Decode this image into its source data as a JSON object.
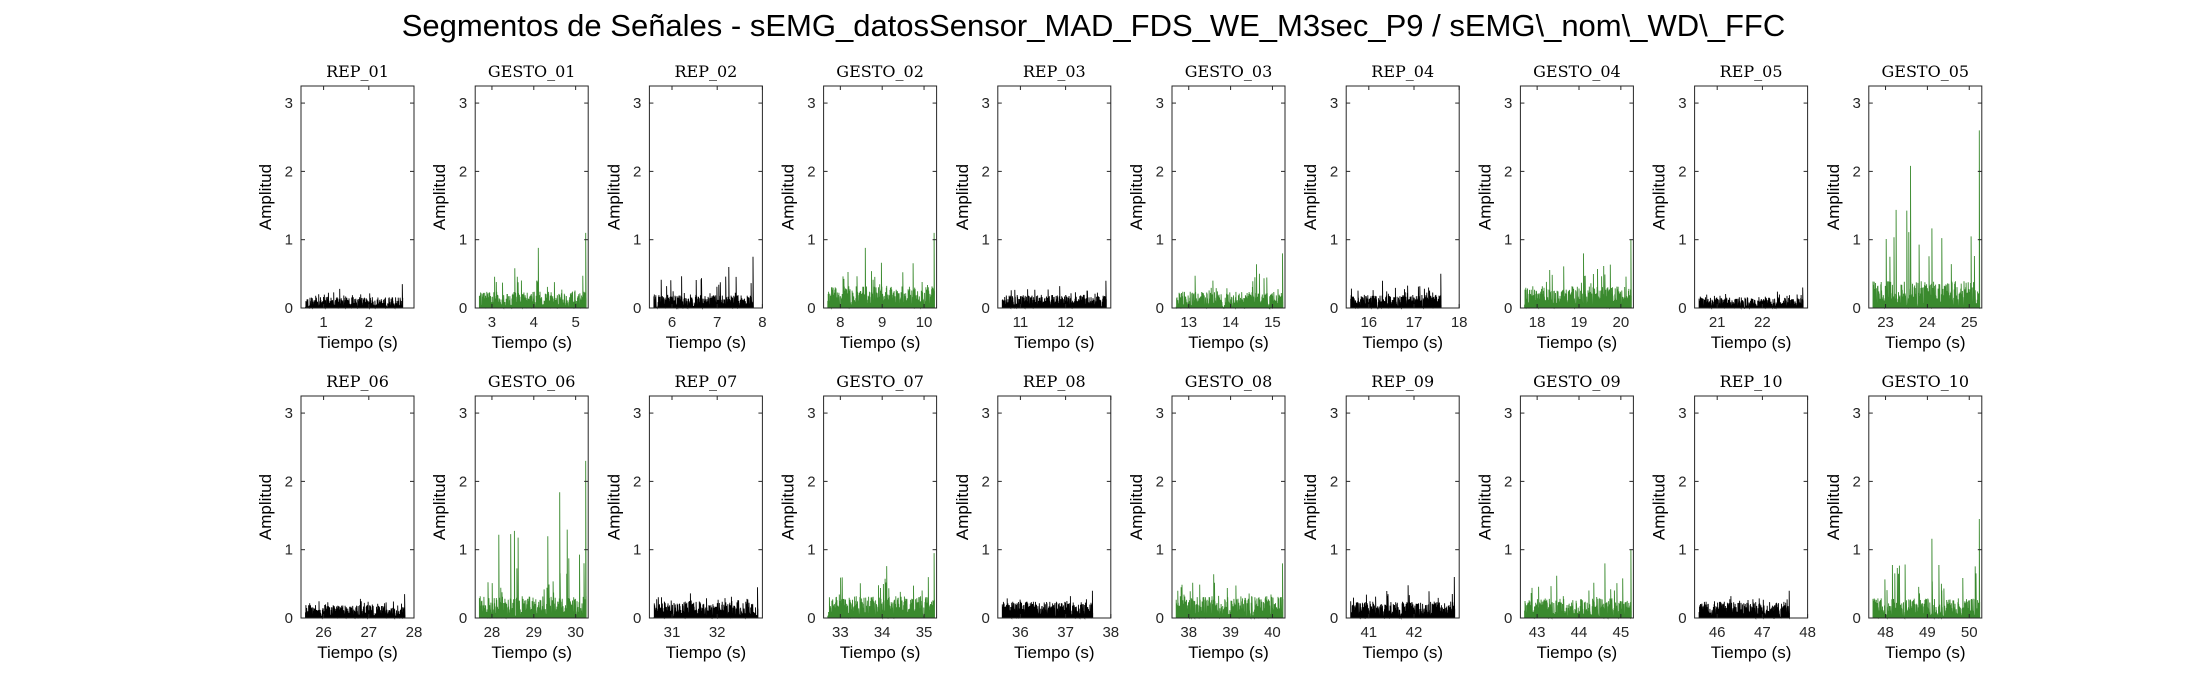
{
  "title": "Segmentos de Señales - sEMG_datosSensor_MAD_FDS_WE_M3sec_P9 / sEMG\\_nom\\_WD\\_FFC",
  "chart_data": {
    "type": "line",
    "xlabel": "Tiempo (s)",
    "ylabel": "Amplitud",
    "ylim": [
      0,
      3.25
    ],
    "yticks": [
      0,
      1,
      2,
      3
    ],
    "colors": {
      "rep": "#000000",
      "gesto": "#3a8a2e",
      "axes": "#262626"
    },
    "panels": [
      {
        "title": "REP_01",
        "kind": "rep",
        "xlim": [
          0.5,
          3.0
        ],
        "xticks": [
          1,
          2
        ],
        "sig": [
          0.6,
          2.75
        ],
        "base": 0.1,
        "peak": 0.35
      },
      {
        "title": "GESTO_01",
        "kind": "gesto",
        "xlim": [
          2.6,
          5.3
        ],
        "xticks": [
          3,
          4,
          5
        ],
        "sig": [
          2.7,
          5.25
        ],
        "base": 0.15,
        "peak": 1.1
      },
      {
        "title": "REP_02",
        "kind": "rep",
        "xlim": [
          5.5,
          8.0
        ],
        "xticks": [
          6,
          7,
          8
        ],
        "sig": [
          5.6,
          7.8
        ],
        "base": 0.12,
        "peak": 0.75
      },
      {
        "title": "GESTO_02",
        "kind": "gesto",
        "xlim": [
          7.6,
          10.3
        ],
        "xticks": [
          8,
          9,
          10
        ],
        "sig": [
          7.7,
          10.25
        ],
        "base": 0.2,
        "peak": 1.1
      },
      {
        "title": "REP_03",
        "kind": "rep",
        "xlim": [
          10.5,
          13.0
        ],
        "xticks": [
          11,
          12
        ],
        "sig": [
          10.6,
          12.9
        ],
        "base": 0.12,
        "peak": 0.4
      },
      {
        "title": "GESTO_03",
        "kind": "gesto",
        "xlim": [
          12.6,
          15.3
        ],
        "xticks": [
          13,
          14,
          15
        ],
        "sig": [
          12.7,
          15.25
        ],
        "base": 0.15,
        "peak": 0.8
      },
      {
        "title": "REP_04",
        "kind": "rep",
        "xlim": [
          15.5,
          18.0
        ],
        "xticks": [
          16,
          17,
          18
        ],
        "sig": [
          15.6,
          17.6
        ],
        "base": 0.12,
        "peak": 0.5
      },
      {
        "title": "GESTO_04",
        "kind": "gesto",
        "xlim": [
          17.6,
          20.3
        ],
        "xticks": [
          18,
          19,
          20
        ],
        "sig": [
          17.7,
          20.25
        ],
        "base": 0.2,
        "peak": 1.0
      },
      {
        "title": "REP_05",
        "kind": "rep",
        "xlim": [
          20.5,
          23.0
        ],
        "xticks": [
          21,
          22
        ],
        "sig": [
          20.6,
          22.9
        ],
        "base": 0.1,
        "peak": 0.3
      },
      {
        "title": "GESTO_05",
        "kind": "gesto",
        "xlim": [
          22.6,
          25.3
        ],
        "xticks": [
          23,
          24,
          25
        ],
        "sig": [
          22.7,
          25.25
        ],
        "base": 0.25,
        "peak": 2.6
      },
      {
        "title": "REP_06",
        "kind": "rep",
        "xlim": [
          25.5,
          28.0
        ],
        "xticks": [
          26,
          27,
          28
        ],
        "sig": [
          25.6,
          27.8
        ],
        "base": 0.12,
        "peak": 0.35
      },
      {
        "title": "GESTO_06",
        "kind": "gesto",
        "xlim": [
          27.6,
          30.3
        ],
        "xticks": [
          28,
          29,
          30
        ],
        "sig": [
          27.7,
          30.25
        ],
        "base": 0.2,
        "peak": 2.3
      },
      {
        "title": "REP_07",
        "kind": "rep",
        "xlim": [
          30.5,
          33.0
        ],
        "xticks": [
          31,
          32
        ],
        "sig": [
          30.6,
          32.9
        ],
        "base": 0.15,
        "peak": 0.45
      },
      {
        "title": "GESTO_07",
        "kind": "gesto",
        "xlim": [
          32.6,
          35.3
        ],
        "xticks": [
          33,
          34,
          35
        ],
        "sig": [
          32.7,
          35.25
        ],
        "base": 0.2,
        "peak": 0.95
      },
      {
        "title": "REP_08",
        "kind": "rep",
        "xlim": [
          35.5,
          38.0
        ],
        "xticks": [
          36,
          37,
          38
        ],
        "sig": [
          35.6,
          37.6
        ],
        "base": 0.15,
        "peak": 0.4
      },
      {
        "title": "GESTO_08",
        "kind": "gesto",
        "xlim": [
          37.6,
          40.3
        ],
        "xticks": [
          38,
          39,
          40
        ],
        "sig": [
          37.7,
          40.25
        ],
        "base": 0.2,
        "peak": 0.8
      },
      {
        "title": "REP_09",
        "kind": "rep",
        "xlim": [
          40.5,
          43.0
        ],
        "xticks": [
          41,
          42
        ],
        "sig": [
          40.6,
          42.9
        ],
        "base": 0.15,
        "peak": 0.6
      },
      {
        "title": "GESTO_09",
        "kind": "gesto",
        "xlim": [
          42.6,
          45.3
        ],
        "xticks": [
          43,
          44,
          45
        ],
        "sig": [
          42.7,
          45.25
        ],
        "base": 0.18,
        "peak": 1.0
      },
      {
        "title": "REP_10",
        "kind": "rep",
        "xlim": [
          45.5,
          48.0
        ],
        "xticks": [
          46,
          47,
          48
        ],
        "sig": [
          45.6,
          47.6
        ],
        "base": 0.15,
        "peak": 0.4
      },
      {
        "title": "GESTO_10",
        "kind": "gesto",
        "xlim": [
          47.6,
          50.3
        ],
        "xticks": [
          48,
          49,
          50
        ],
        "sig": [
          47.7,
          50.25
        ],
        "base": 0.18,
        "peak": 1.45
      }
    ]
  }
}
